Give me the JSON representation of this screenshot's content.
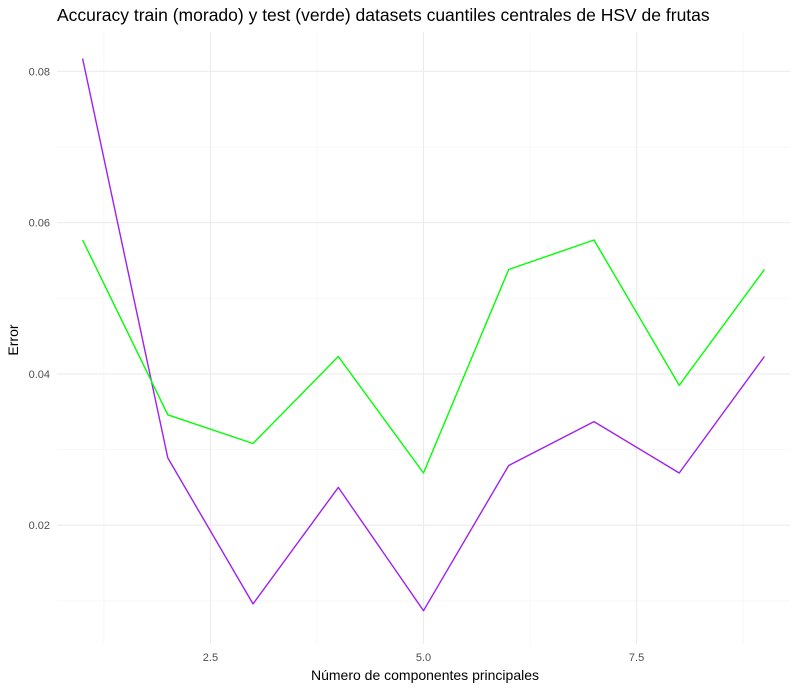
{
  "chart_data": {
    "type": "line",
    "title": "Accuracy train (morado) y test (verde) datasets cuantiles centrales de HSV de frutas",
    "xlabel": "Número de componentes principales",
    "ylabel": "Error",
    "x": [
      1,
      2,
      3,
      4,
      5,
      6,
      7,
      8,
      9
    ],
    "xlim": [
      0.7,
      9.3
    ],
    "ylim": [
      0.0043,
      0.0852
    ],
    "x_major_ticks": [
      2.5,
      5.0,
      7.5
    ],
    "x_tick_labels": [
      "2.5",
      "5.0",
      "7.5"
    ],
    "x_minor_ticks": [
      1.25,
      3.75,
      6.25,
      8.75
    ],
    "y_major_ticks": [
      0.02,
      0.04,
      0.06,
      0.08
    ],
    "y_tick_labels": [
      "0.02",
      "0.04",
      "0.06",
      "0.08"
    ],
    "y_minor_ticks": [
      0.01,
      0.03,
      0.05,
      0.07
    ],
    "grid": true,
    "legend": "none",
    "series": [
      {
        "id": "train",
        "color": "#a020f0",
        "values": [
          0.0817,
          0.0289,
          0.0096,
          0.025,
          0.0087,
          0.0279,
          0.0337,
          0.0269,
          0.0423
        ]
      },
      {
        "id": "test",
        "color": "#00ff00",
        "values": [
          0.0577,
          0.0346,
          0.0308,
          0.0423,
          0.0269,
          0.0538,
          0.0577,
          0.0385,
          0.0538
        ]
      }
    ]
  }
}
